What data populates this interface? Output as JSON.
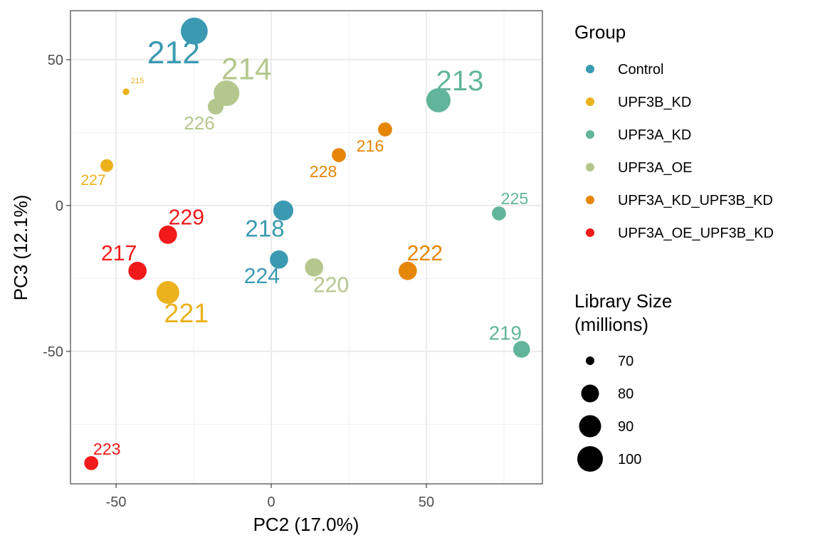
{
  "chart_data": {
    "type": "scatter",
    "title": "",
    "xlabel": "PC2 (17.0%)",
    "ylabel": "PC3 (12.1%)",
    "xlim": [
      -64.7,
      87.4
    ],
    "ylim": [
      -95.4,
      66.8
    ],
    "xticks": [
      -50,
      0,
      50
    ],
    "yticks": [
      -50,
      0,
      50
    ],
    "grid": true,
    "legend_placement": "right",
    "color_legend": {
      "title": "Group",
      "entries": [
        {
          "name": "Control",
          "color": "#3B9AB2"
        },
        {
          "name": "UPF3B_KD",
          "color": "#EBB21E"
        },
        {
          "name": "UPF3A_KD",
          "color": "#62B59A"
        },
        {
          "name": "UPF3A_OE",
          "color": "#B5C78E"
        },
        {
          "name": "UPF3A_KD_UPF3B_KD",
          "color": "#E68606"
        },
        {
          "name": "UPF3A_OE_UPF3B_KD",
          "color": "#F21A1A"
        }
      ]
    },
    "size_legend": {
      "title_line1": "Library Size",
      "title_line2": "(millions)",
      "values": [
        70,
        80,
        90,
        100
      ]
    },
    "points": [
      {
        "label": "212",
        "group": "Control",
        "x": -24.8,
        "y": 59.8,
        "size": 104
      },
      {
        "label": "213",
        "group": "UPF3A_KD",
        "x": 53.9,
        "y": 36.1,
        "size": 96
      },
      {
        "label": "214",
        "group": "UPF3A_OE",
        "x": -14.4,
        "y": 38.5,
        "size": 100
      },
      {
        "label": "215",
        "group": "UPF3B_KD",
        "x": -46.8,
        "y": 39.0,
        "size": 64
      },
      {
        "label": "226",
        "group": "UPF3A_OE",
        "x": -17.9,
        "y": 33.9,
        "size": 76
      },
      {
        "label": "227",
        "group": "UPF3B_KD",
        "x": -53.0,
        "y": 13.7,
        "size": 71
      },
      {
        "label": "216",
        "group": "UPF3A_KD_UPF3B_KD",
        "x": 36.7,
        "y": 26.1,
        "size": 73
      },
      {
        "label": "228",
        "group": "UPF3A_KD_UPF3B_KD",
        "x": 21.8,
        "y": 17.3,
        "size": 73
      },
      {
        "label": "225",
        "group": "UPF3A_KD",
        "x": 73.4,
        "y": -2.7,
        "size": 73
      },
      {
        "label": "218",
        "group": "Control",
        "x": 3.9,
        "y": -1.7,
        "size": 85
      },
      {
        "label": "229",
        "group": "UPF3A_OE_UPF3B_KD",
        "x": -33.3,
        "y": -10.0,
        "size": 81
      },
      {
        "label": "217",
        "group": "UPF3A_OE_UPF3B_KD",
        "x": -43.1,
        "y": -22.4,
        "size": 81
      },
      {
        "label": "224",
        "group": "Control",
        "x": 2.5,
        "y": -18.5,
        "size": 81
      },
      {
        "label": "220",
        "group": "UPF3A_OE",
        "x": 13.8,
        "y": -21.2,
        "size": 81
      },
      {
        "label": "222",
        "group": "UPF3A_KD_UPF3B_KD",
        "x": 44.0,
        "y": -22.4,
        "size": 81
      },
      {
        "label": "221",
        "group": "UPF3B_KD",
        "x": -33.3,
        "y": -29.8,
        "size": 92
      },
      {
        "label": "219",
        "group": "UPF3A_KD",
        "x": 80.7,
        "y": -49.3,
        "size": 78
      },
      {
        "label": "223",
        "group": "UPF3A_OE_UPF3B_KD",
        "x": -58.0,
        "y": -88.3,
        "size": 73
      }
    ]
  }
}
